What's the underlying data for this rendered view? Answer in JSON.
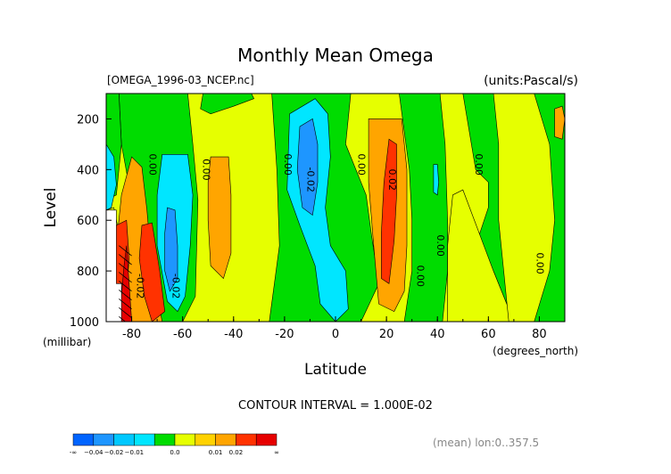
{
  "chart_data": {
    "type": "contour",
    "title": "Monthly Mean Omega",
    "file_label": "[OMEGA_1996-03_NCEP.nc]",
    "units_label": "(units:Pascal/s)",
    "xlabel": "Latitude",
    "x_unit_label": "(degrees_north)",
    "ylabel": "Level",
    "y_unit_label": "(millibar)",
    "xlim": [
      -90,
      90
    ],
    "ylim": [
      1000,
      100
    ],
    "x_ticks": [
      -80,
      -60,
      -40,
      -20,
      0,
      20,
      40,
      60,
      80
    ],
    "x_tick_labels": [
      "-80",
      "-60",
      "-40",
      "-20",
      "0",
      "20",
      "40",
      "60",
      "80"
    ],
    "y_ticks": [
      200,
      400,
      600,
      800,
      1000
    ],
    "y_tick_labels": [
      "200",
      "400",
      "600",
      "800",
      "1000"
    ],
    "contour_interval_text": "CONTOUR INTERVAL = 1.000E-02",
    "footer_note": "(mean) lon:0..357.5",
    "colorbar": {
      "colors": [
        "#0064ff",
        "#1e96ff",
        "#00c8ff",
        "#00e6ff",
        "#00dc00",
        "#e6ff00",
        "#ffd200",
        "#ffa500",
        "#ff3200",
        "#e60000"
      ],
      "tick_labels": [
        "-∞",
        "−0.04",
        "−0.02",
        "−0.01",
        "0.0",
        "0.01",
        "0.02",
        "∞"
      ]
    },
    "contour_labels": [
      {
        "lat": -73,
        "lev": 380,
        "text": "0.00"
      },
      {
        "lat": -52,
        "lev": 400,
        "text": "0.00"
      },
      {
        "lat": -20,
        "lev": 380,
        "text": "0.00"
      },
      {
        "lat": -11,
        "lev": 440,
        "text": "-0.02"
      },
      {
        "lat": 9,
        "lev": 380,
        "text": "0.00"
      },
      {
        "lat": 21,
        "lev": 440,
        "text": "0.02"
      },
      {
        "lat": 32,
        "lev": 820,
        "text": "0.00"
      },
      {
        "lat": 40,
        "lev": 700,
        "text": "0.00"
      },
      {
        "lat": 55,
        "lev": 380,
        "text": "0.00"
      },
      {
        "lat": 79,
        "lev": 770,
        "text": "0.00"
      },
      {
        "lat": -78,
        "lev": 860,
        "text": "-0.02"
      },
      {
        "lat": -64,
        "lev": 860,
        "text": "-0.02"
      }
    ],
    "regions": [
      {
        "name": "background",
        "value": "0.00 to 0.01",
        "color": "#e6ff00",
        "outline": [
          [
            -90,
            100
          ],
          [
            90,
            100
          ],
          [
            90,
            1000
          ],
          [
            -90,
            1000
          ]
        ]
      },
      {
        "name": "green-sh-65",
        "value": "-0.01 to 0.00",
        "color": "#00dc00",
        "outline": [
          [
            -85,
            100
          ],
          [
            -58,
            100
          ],
          [
            -56,
            300
          ],
          [
            -54,
            520
          ],
          [
            -55,
            900
          ],
          [
            -60,
            1000
          ],
          [
            -70,
            1000
          ],
          [
            -76,
            880
          ],
          [
            -80,
            520
          ],
          [
            -84,
            300
          ]
        ]
      },
      {
        "name": "green-sh-45",
        "value": "-0.01 to 0.00",
        "color": "#00dc00",
        "outline": [
          [
            -52,
            100
          ],
          [
            -33,
            100
          ],
          [
            -32,
            120
          ],
          [
            -40,
            150
          ],
          [
            -49,
            180
          ],
          [
            -53,
            160
          ]
        ]
      },
      {
        "name": "green-eq",
        "value": "-0.01 to 0.00",
        "color": "#00dc00",
        "outline": [
          [
            -25,
            100
          ],
          [
            6,
            100
          ],
          [
            4,
            300
          ],
          [
            12,
            500
          ],
          [
            14,
            650
          ],
          [
            17,
            850
          ],
          [
            10,
            1000
          ],
          [
            -26,
            1000
          ],
          [
            -22,
            700
          ],
          [
            -23,
            400
          ]
        ]
      },
      {
        "name": "green-nh-40",
        "value": "-0.01 to 0.00",
        "color": "#00dc00",
        "outline": [
          [
            25,
            100
          ],
          [
            41,
            100
          ],
          [
            43,
            300
          ],
          [
            44,
            600
          ],
          [
            44,
            800
          ],
          [
            42,
            1000
          ],
          [
            27,
            1000
          ],
          [
            30,
            800
          ],
          [
            30,
            600
          ],
          [
            29,
            400
          ]
        ]
      },
      {
        "name": "green-nh-70",
        "value": "-0.01 to 0.00",
        "color": "#00dc00",
        "outline": [
          [
            50,
            100
          ],
          [
            90,
            100
          ],
          [
            90,
            1000
          ],
          [
            70,
            1000
          ],
          [
            62,
            800
          ],
          [
            55,
            700
          ],
          [
            60,
            550
          ],
          [
            60,
            450
          ],
          [
            55,
            400
          ]
        ]
      },
      {
        "name": "yellow-nh-60",
        "value": "0.00 to 0.01",
        "color": "#e6ff00",
        "outline": [
          [
            44,
            1000
          ],
          [
            44,
            700
          ],
          [
            46,
            500
          ],
          [
            50,
            480
          ],
          [
            62,
            800
          ],
          [
            70,
            1000
          ]
        ]
      },
      {
        "name": "yellow-nh-85",
        "value": "0.00 to 0.01",
        "color": "#e6ff00",
        "outline": [
          [
            62,
            100
          ],
          [
            78,
            100
          ],
          [
            84,
            300
          ],
          [
            86,
            600
          ],
          [
            84,
            800
          ],
          [
            78,
            1000
          ],
          [
            68,
            1000
          ],
          [
            64,
            600
          ],
          [
            64,
            300
          ]
        ]
      },
      {
        "name": "green-sh-88",
        "value": "-0.01 to 0.00",
        "color": "#00dc00",
        "outline": [
          [
            -90,
            100
          ],
          [
            -85,
            100
          ],
          [
            -84,
            300
          ],
          [
            -86,
            500
          ],
          [
            -90,
            520
          ]
        ]
      },
      {
        "name": "cyan-sh-88",
        "value": "-0.02 to -0.01",
        "color": "#00e6ff",
        "outline": [
          [
            -90,
            300
          ],
          [
            -87,
            350
          ],
          [
            -86,
            460
          ],
          [
            -88,
            550
          ],
          [
            -90,
            560
          ]
        ]
      },
      {
        "name": "orange-sh-80",
        "value": "0.01 to 0.02",
        "color": "#ffa500",
        "outline": [
          [
            -80,
            350
          ],
          [
            -76,
            390
          ],
          [
            -74,
            560
          ],
          [
            -72,
            800
          ],
          [
            -68,
            1000
          ],
          [
            -84,
            1000
          ],
          [
            -86,
            700
          ],
          [
            -84,
            500
          ]
        ]
      },
      {
        "name": "cyan-sh-62",
        "value": "-0.02 to -0.01",
        "color": "#00e6ff",
        "outline": [
          [
            -68,
            340
          ],
          [
            -58,
            340
          ],
          [
            -56,
            500
          ],
          [
            -57,
            700
          ],
          [
            -59,
            900
          ],
          [
            -62,
            960
          ],
          [
            -66,
            920
          ],
          [
            -70,
            700
          ],
          [
            -70,
            500
          ]
        ]
      },
      {
        "name": "blue-sh-64",
        "value": "-0.03 to -0.02",
        "color": "#1e96ff",
        "outline": [
          [
            -66,
            550
          ],
          [
            -63,
            560
          ],
          [
            -62,
            700
          ],
          [
            -62,
            830
          ],
          [
            -65,
            880
          ],
          [
            -67,
            800
          ],
          [
            -67,
            650
          ]
        ]
      },
      {
        "name": "orange-sh-45",
        "value": "0.01 to 0.02",
        "color": "#ffa500",
        "outline": [
          [
            -49,
            350
          ],
          [
            -42,
            350
          ],
          [
            -41,
            500
          ],
          [
            -41,
            730
          ],
          [
            -44,
            830
          ],
          [
            -49,
            780
          ],
          [
            -50,
            600
          ],
          [
            -50,
            450
          ]
        ]
      },
      {
        "name": "cyan-eq",
        "value": "-0.02 to -0.01",
        "color": "#00e6ff",
        "outline": [
          [
            -18,
            180
          ],
          [
            -8,
            120
          ],
          [
            -3,
            180
          ],
          [
            -2,
            350
          ],
          [
            -4,
            550
          ],
          [
            -2,
            700
          ],
          [
            4,
            800
          ],
          [
            5,
            950
          ],
          [
            0,
            1000
          ],
          [
            -6,
            930
          ],
          [
            -8,
            780
          ],
          [
            -14,
            620
          ],
          [
            -19,
            480
          ]
        ]
      },
      {
        "name": "blue-eq",
        "value": "-0.03 to -0.02",
        "color": "#1e96ff",
        "outline": [
          [
            -14,
            230
          ],
          [
            -9,
            200
          ],
          [
            -7,
            300
          ],
          [
            -7,
            450
          ],
          [
            -9,
            580
          ],
          [
            -13,
            550
          ],
          [
            -15,
            400
          ]
        ]
      },
      {
        "name": "orange-nh-20",
        "value": "0.01 to 0.02",
        "color": "#ffa500",
        "outline": [
          [
            13,
            200
          ],
          [
            26,
            200
          ],
          [
            28,
            400
          ],
          [
            28,
            700
          ],
          [
            27,
            880
          ],
          [
            23,
            960
          ],
          [
            17,
            930
          ],
          [
            15,
            700
          ],
          [
            13,
            450
          ]
        ]
      },
      {
        "name": "red-nh-20",
        "value": "0.02 to 0.03",
        "color": "#ff3200",
        "outline": [
          [
            21,
            280
          ],
          [
            24,
            300
          ],
          [
            24,
            500
          ],
          [
            23,
            680
          ],
          [
            21,
            850
          ],
          [
            18,
            830
          ],
          [
            18,
            650
          ],
          [
            19,
            450
          ]
        ]
      },
      {
        "name": "yellow-sh-85",
        "value": "0.00 to 0.01",
        "color": "#e6ff00",
        "outline": [
          [
            -90,
            560
          ],
          [
            -87,
            550
          ],
          [
            -85,
            650
          ],
          [
            -85,
            850
          ],
          [
            -88,
            950
          ],
          [
            -90,
            1000
          ]
        ]
      },
      {
        "name": "red-sh-82",
        "value": "0.02 to 0.03",
        "color": "#ff3200",
        "outline": [
          [
            -86,
            620
          ],
          [
            -82,
            600
          ],
          [
            -81,
            750
          ],
          [
            -82,
            900
          ],
          [
            -80,
            1000
          ],
          [
            -87,
            1000
          ],
          [
            -88,
            800
          ]
        ]
      },
      {
        "name": "red-sh-72",
        "value": "0.02 to 0.03",
        "color": "#ff3200",
        "outline": [
          [
            -76,
            620
          ],
          [
            -72,
            610
          ],
          [
            -69,
            800
          ],
          [
            -67,
            960
          ],
          [
            -72,
            1000
          ],
          [
            -75,
            900
          ],
          [
            -77,
            750
          ]
        ]
      },
      {
        "name": "darkred-sh-84",
        "value": "> 0.03",
        "color": "#e60000",
        "outline": [
          [
            -83,
            780
          ],
          [
            -82,
            700
          ],
          [
            -81,
            850
          ],
          [
            -80,
            1000
          ],
          [
            -84,
            1000
          ],
          [
            -84,
            900
          ]
        ]
      },
      {
        "name": "orange-nh-88",
        "value": "0.01 to 0.02",
        "color": "#ffa500",
        "outline": [
          [
            86,
            160
          ],
          [
            89,
            150
          ],
          [
            90,
            200
          ],
          [
            89,
            280
          ],
          [
            86,
            270
          ]
        ]
      },
      {
        "name": "cyan-nh-42",
        "value": "-0.02 to -0.01",
        "color": "#00e6ff",
        "outline": [
          [
            38.5,
            380
          ],
          [
            40,
            380
          ],
          [
            40.5,
            450
          ],
          [
            40,
            500
          ],
          [
            38.5,
            490
          ]
        ]
      },
      {
        "name": "blackout-sh",
        "value": "missing (below ground)",
        "color": "#ffffff",
        "outline": [
          [
            -90,
            560
          ],
          [
            -86,
            560
          ],
          [
            -86,
            850
          ],
          [
            -84,
            850
          ],
          [
            -84,
            1000
          ],
          [
            -90,
            1000
          ]
        ]
      }
    ]
  }
}
